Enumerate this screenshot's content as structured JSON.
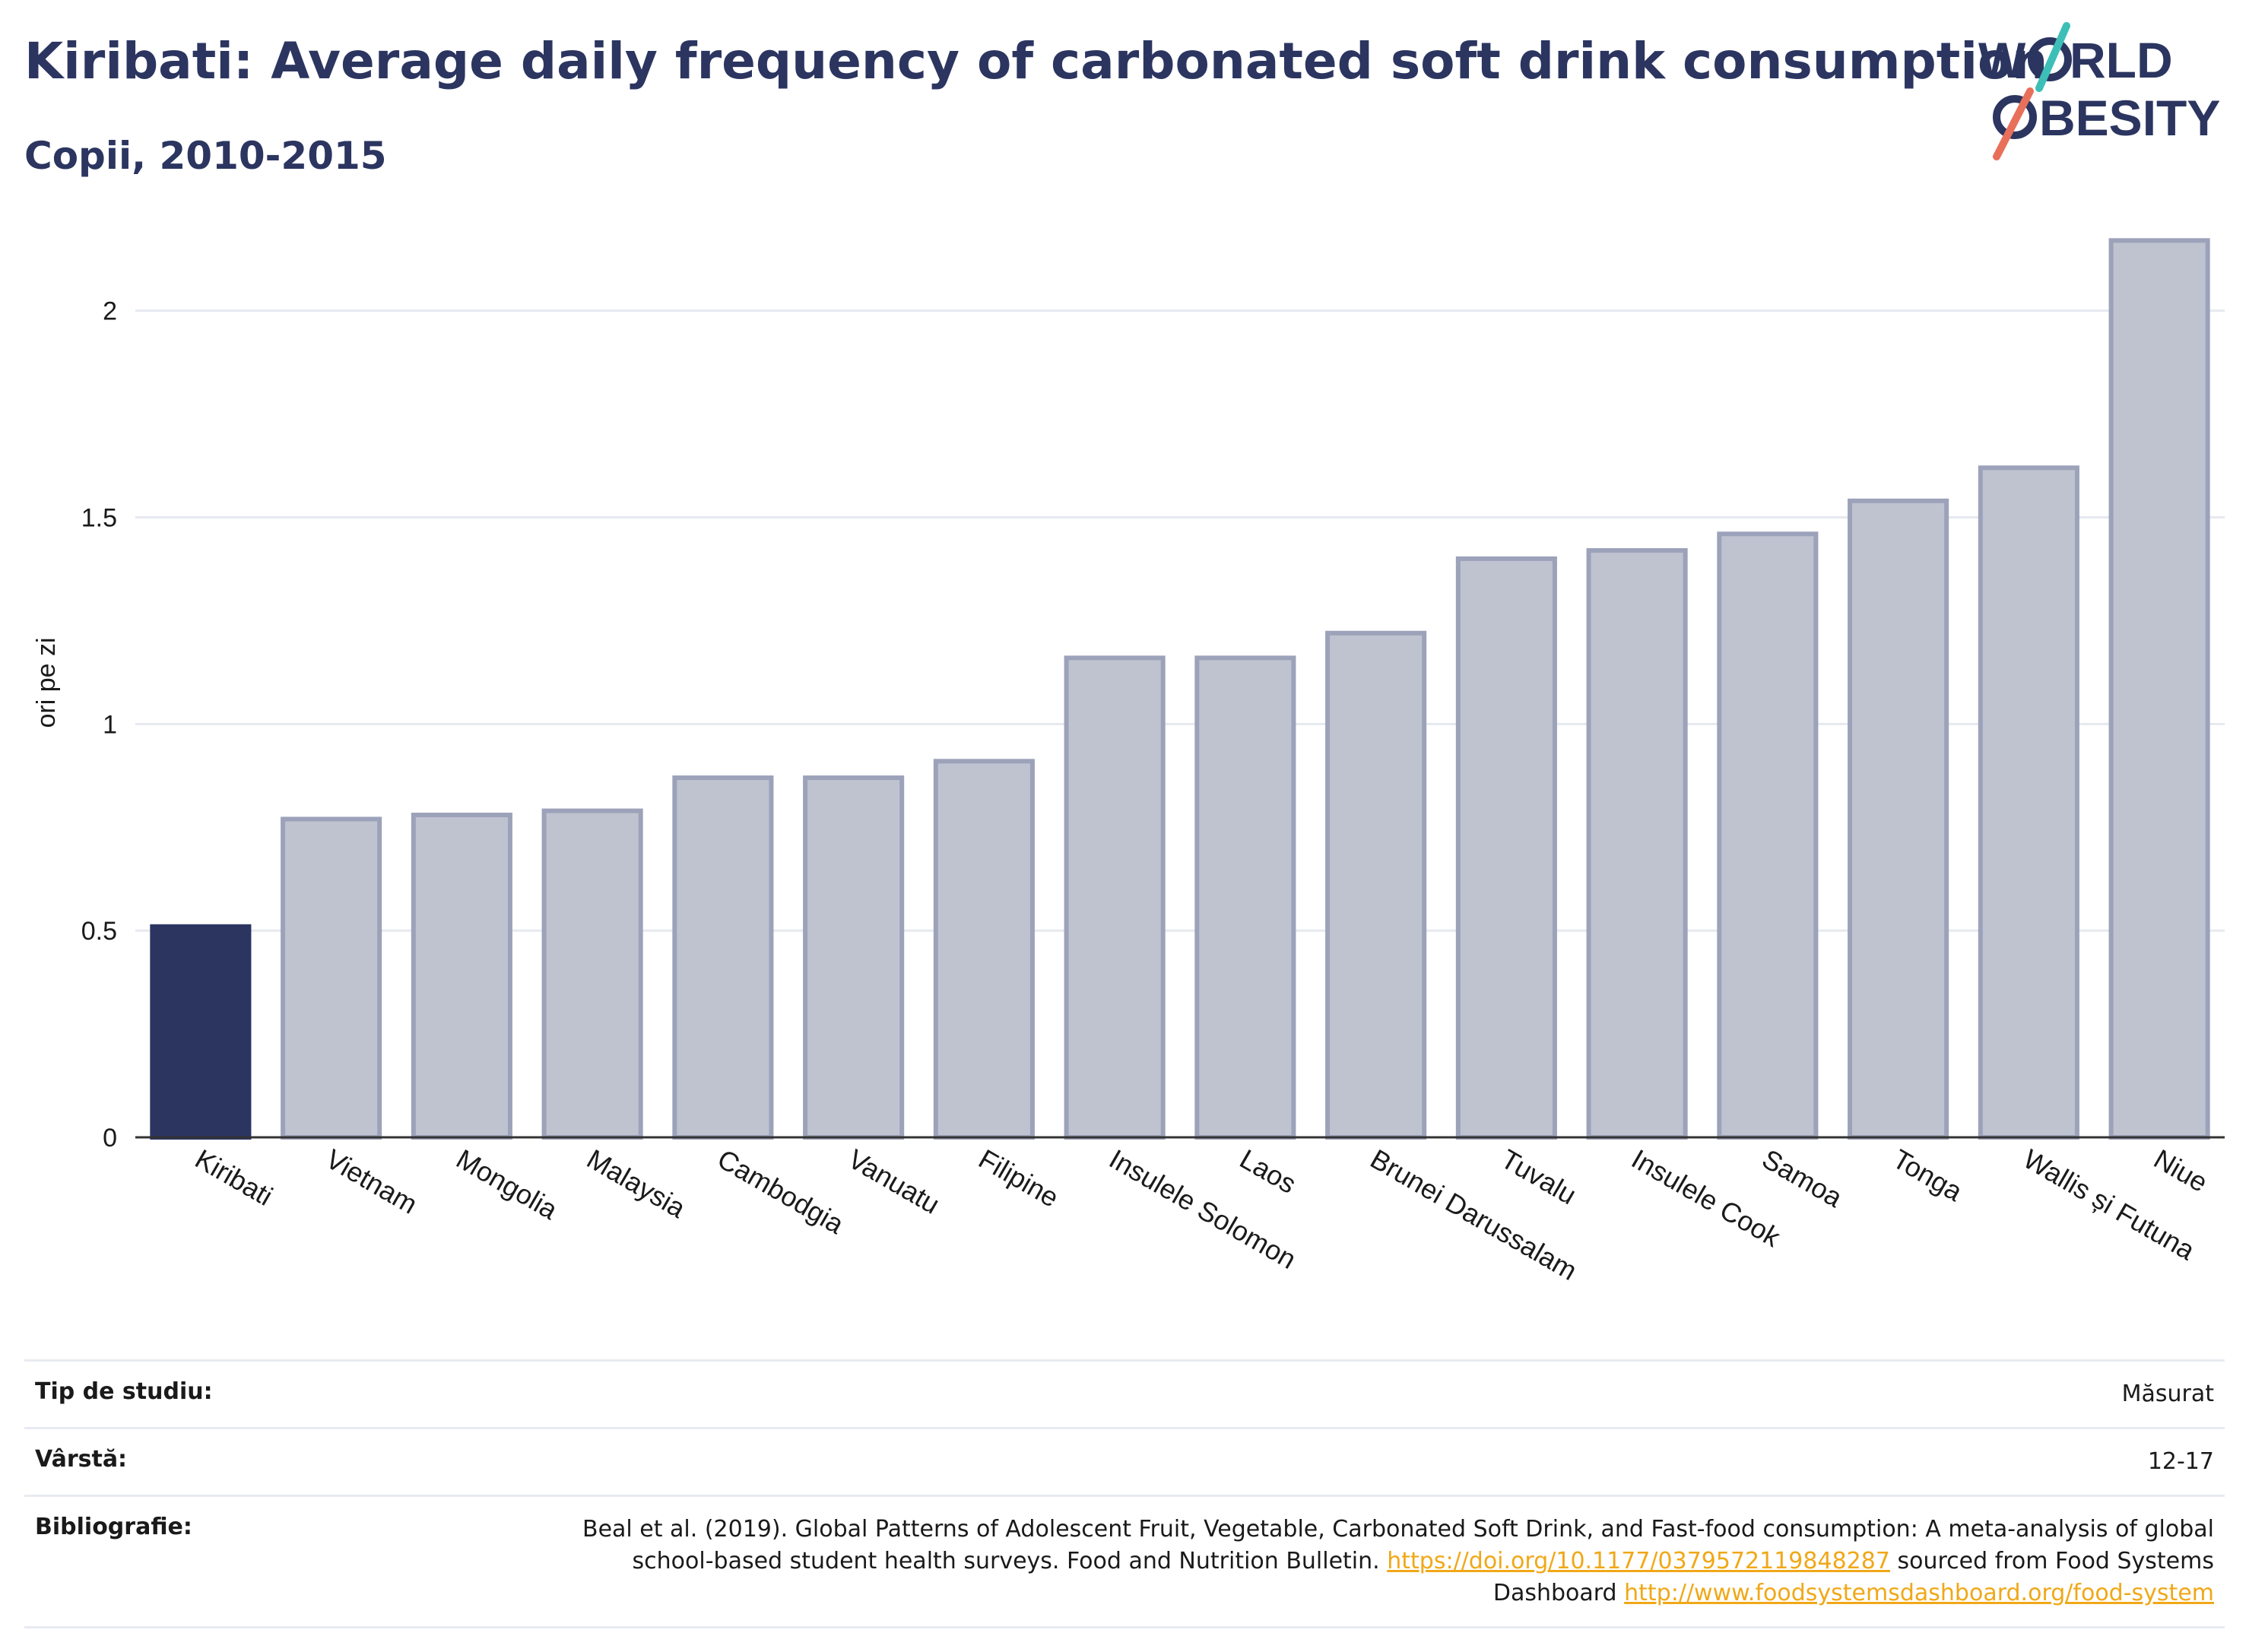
{
  "header": {
    "title": "Kiribati: Average daily frequency of carbonated soft drink consumption",
    "subtitle": "Copii, 2010-2015"
  },
  "logo": {
    "line1": "W",
    "line1b": "RLD",
    "line2": "BESITY",
    "colors": {
      "text": "#2b3560",
      "slash_top": "#3dbfb8",
      "slash_bottom": "#e8705a"
    }
  },
  "colors": {
    "highlight": "#2b3560",
    "bar_fill": "#bfc3d0",
    "bar_stroke": "#9ca2b9",
    "grid": "#e6e9ef",
    "link": "#f0a818"
  },
  "chart_data": {
    "type": "bar",
    "title": "Kiribati: Average daily frequency of carbonated soft drink consumption",
    "subtitle": "Copii, 2010-2015",
    "xlabel": "",
    "ylabel": "ori pe zi",
    "ylim": [
      0,
      2.2
    ],
    "yticks": [
      0,
      0.5,
      1,
      1.5,
      2
    ],
    "ytick_labels": [
      "0",
      "0.5",
      "1",
      "1.5",
      "2"
    ],
    "grid": true,
    "highlight": "Kiribati",
    "categories": [
      "Kiribati",
      "Vietnam",
      "Mongolia",
      "Malaysia",
      "Cambodgia",
      "Vanuatu",
      "Filipine",
      "Insulele Solomon",
      "Laos",
      "Brunei Darussalam",
      "Tuvalu",
      "Insulele Cook",
      "Samoa",
      "Tonga",
      "Wallis și Futuna",
      "Niue"
    ],
    "values": [
      0.51,
      0.77,
      0.78,
      0.79,
      0.87,
      0.87,
      0.91,
      1.16,
      1.16,
      1.22,
      1.4,
      1.42,
      1.46,
      1.54,
      1.62,
      2.17
    ]
  },
  "meta": {
    "study_type_label": "Tip de studiu:",
    "study_type_value": "Măsurat",
    "age_label": "Vârstă:",
    "age_value": "12-17",
    "biblio_label": "Bibliografie:",
    "biblio_text1": "Beal et al. (2019). Global Patterns of Adolescent Fruit, Vegetable, Carbonated Soft Drink, and Fast-food consumption: A meta-analysis of global school-based student health surveys. Food and Nutrition Bulletin.",
    "biblio_link1": "https://doi.org/10.1177/0379572119848287",
    "biblio_text2": "sourced from Food Systems Dashboard",
    "biblio_link2": "http://www.foodsystemsdashboard.org/food-system"
  }
}
